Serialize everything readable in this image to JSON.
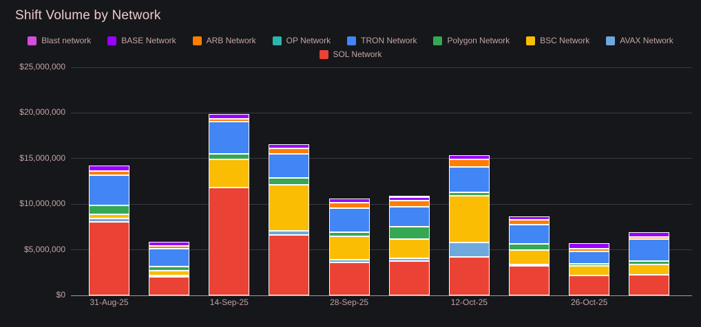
{
  "header": {
    "title": "Shift Volume by Network"
  },
  "legend": {
    "rows": [
      [
        "Blast network",
        "BASE Network",
        "ARB Network",
        "OP Network",
        "TRON Network",
        "Polygon Network",
        "BSC Network",
        "AVAX Network"
      ],
      [
        "SOL Network"
      ]
    ]
  },
  "chart_data": {
    "type": "bar",
    "stacked": true,
    "title": "Shift Volume by Network",
    "xlabel": "",
    "ylabel": "",
    "value_format": "USD",
    "ylim": [
      0,
      25000000
    ],
    "grid": true,
    "legend_position": "top",
    "bar_count": 10,
    "categories": [
      "31-Aug-25",
      "",
      "14-Sep-25",
      "",
      "28-Sep-25",
      "",
      "12-Oct-25",
      "",
      "26-Oct-25",
      ""
    ],
    "x_tick_labels": [
      {
        "label": "31-Aug-25",
        "bar_index": 0
      },
      {
        "label": "14-Sep-25",
        "bar_index": 2
      },
      {
        "label": "28-Sep-25",
        "bar_index": 4
      },
      {
        "label": "12-Oct-25",
        "bar_index": 6
      },
      {
        "label": "26-Oct-25",
        "bar_index": 8
      }
    ],
    "y_ticks": [
      {
        "value": 0,
        "label": "$0"
      },
      {
        "value": 5000000,
        "label": "$5,000,000"
      },
      {
        "value": 10000000,
        "label": "$10,000,000"
      },
      {
        "value": 15000000,
        "label": "$15,000,000"
      },
      {
        "value": 20000000,
        "label": "$20,000,000"
      },
      {
        "value": 25000000,
        "label": "$25,000,000"
      }
    ],
    "stack_order_bottom_to_top": [
      "SOL Network",
      "AVAX Network",
      "BSC Network",
      "Polygon Network",
      "TRON Network",
      "OP Network",
      "ARB Network",
      "BASE Network",
      "Blast network"
    ],
    "series": [
      {
        "name": "Blast network",
        "color": "#d44ddb",
        "values": [
          0,
          0,
          0,
          0,
          0,
          200000,
          0,
          0,
          0,
          0
        ]
      },
      {
        "name": "BASE Network",
        "color": "#9900ff",
        "values": [
          650000,
          450000,
          500000,
          450000,
          450000,
          350000,
          450000,
          400000,
          650000,
          500000
        ]
      },
      {
        "name": "ARB Network",
        "color": "#ff7d00",
        "values": [
          400000,
          300000,
          300000,
          600000,
          550000,
          700000,
          850000,
          500000,
          300000,
          250000
        ]
      },
      {
        "name": "OP Network",
        "color": "#2cb5ac",
        "values": [
          0,
          0,
          0,
          0,
          0,
          0,
          0,
          0,
          0,
          0
        ]
      },
      {
        "name": "TRON Network",
        "color": "#4285f4",
        "values": [
          3300000,
          2000000,
          3500000,
          2650000,
          2650000,
          2150000,
          2750000,
          2100000,
          1300000,
          2350000
        ]
      },
      {
        "name": "Polygon Network",
        "color": "#34a853",
        "values": [
          1000000,
          450000,
          650000,
          800000,
          500000,
          1350000,
          350000,
          700000,
          250000,
          400000
        ]
      },
      {
        "name": "BSC Network",
        "color": "#fbbc04",
        "values": [
          500000,
          500000,
          3100000,
          5000000,
          2500000,
          2150000,
          5150000,
          1550000,
          1050000,
          1150000
        ]
      },
      {
        "name": "AVAX Network",
        "color": "#6fa8dc",
        "values": [
          350000,
          200000,
          0,
          500000,
          300000,
          300000,
          1550000,
          150000,
          0,
          0
        ]
      },
      {
        "name": "SOL Network",
        "color": "#ea4335",
        "values": [
          8050000,
          2000000,
          11800000,
          6600000,
          3650000,
          3750000,
          4250000,
          3250000,
          2200000,
          2250000
        ]
      }
    ],
    "colors": {
      "background": "#16171b",
      "title_text": "#eecaca",
      "axis_text": "#c2a4a4",
      "gridline": "#3a3b41",
      "axis_line": "#9b9da1",
      "segment_border": "#ffffff"
    }
  }
}
